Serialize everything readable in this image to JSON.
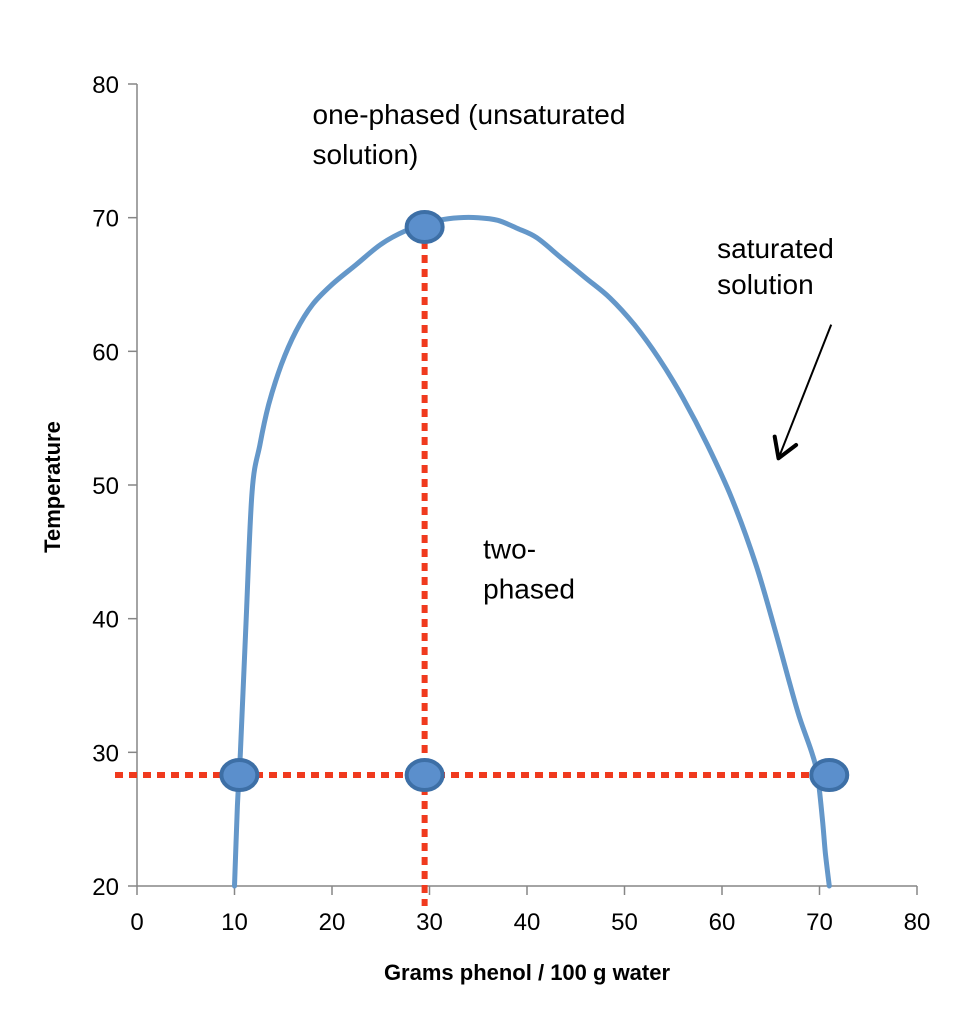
{
  "chart_data": {
    "type": "line",
    "title": "",
    "xlabel": "Grams phenol / 100 g water",
    "ylabel": "Temperature",
    "xlim": [
      0,
      80
    ],
    "ylim": [
      20,
      80
    ],
    "x_ticks": [
      "0",
      "10",
      "20",
      "30",
      "40",
      "50",
      "60",
      "70",
      "80"
    ],
    "y_ticks": [
      "20",
      "30",
      "40",
      "50",
      "60",
      "70",
      "80"
    ],
    "grid": false,
    "series": [
      {
        "color": "#6497C9",
        "x": [
          10.0,
          10.3,
          10.6,
          11.2,
          11.8,
          12.6,
          13.5,
          14.8,
          16.3,
          18.0,
          20.0,
          22.5,
          25.0,
          27.5,
          29.5,
          31.0,
          33.0,
          35.0,
          37.0,
          39.0,
          41.0,
          43.5,
          46.0,
          48.5,
          51.0,
          53.5,
          56.0,
          58.5,
          61.0,
          63.5,
          65.5,
          67.0,
          68.0,
          69.2,
          69.8,
          70.3,
          70.6,
          71.0
        ],
        "y": [
          20.0,
          26.0,
          30.0,
          40.0,
          49.5,
          53.0,
          56.0,
          59.0,
          61.5,
          63.5,
          65.0,
          66.5,
          68.0,
          69.0,
          69.4,
          69.8,
          70.0,
          70.0,
          69.8,
          69.2,
          68.5,
          67.0,
          65.5,
          64.0,
          62.0,
          59.5,
          56.5,
          53.0,
          49.0,
          44.0,
          39.0,
          35.0,
          32.5,
          30.0,
          28.3,
          25.0,
          22.5,
          20.0
        ]
      }
    ],
    "highlight_points": [
      {
        "x": 10.5,
        "y": 28.3
      },
      {
        "x": 29.5,
        "y": 28.3
      },
      {
        "x": 71.0,
        "y": 28.3
      },
      {
        "x": 29.5,
        "y": 69.3
      }
    ],
    "reference_lines": {
      "color": "#F03A1E",
      "horizontal_y": 28.3,
      "horizontal_x_range": [
        0.0,
        71.0
      ],
      "vertical_x": 29.5,
      "vertical_y_range": [
        18.5,
        69.3
      ]
    },
    "annotations": [
      {
        "text": "one-phased (unsaturated",
        "x": 18.0,
        "y": 77.0
      },
      {
        "text": "solution)",
        "x": 18.0,
        "y": 74.0
      },
      {
        "text": "saturated",
        "x": 59.5,
        "y": 67.0
      },
      {
        "text": "solution",
        "x": 59.5,
        "y": 64.3
      },
      {
        "text": "two-",
        "x": 35.5,
        "y": 44.5
      },
      {
        "text": "phased",
        "x": 35.5,
        "y": 41.5
      }
    ],
    "arrow": {
      "from": [
        71.2,
        62.0
      ],
      "to": [
        65.8,
        52.0
      ]
    }
  }
}
